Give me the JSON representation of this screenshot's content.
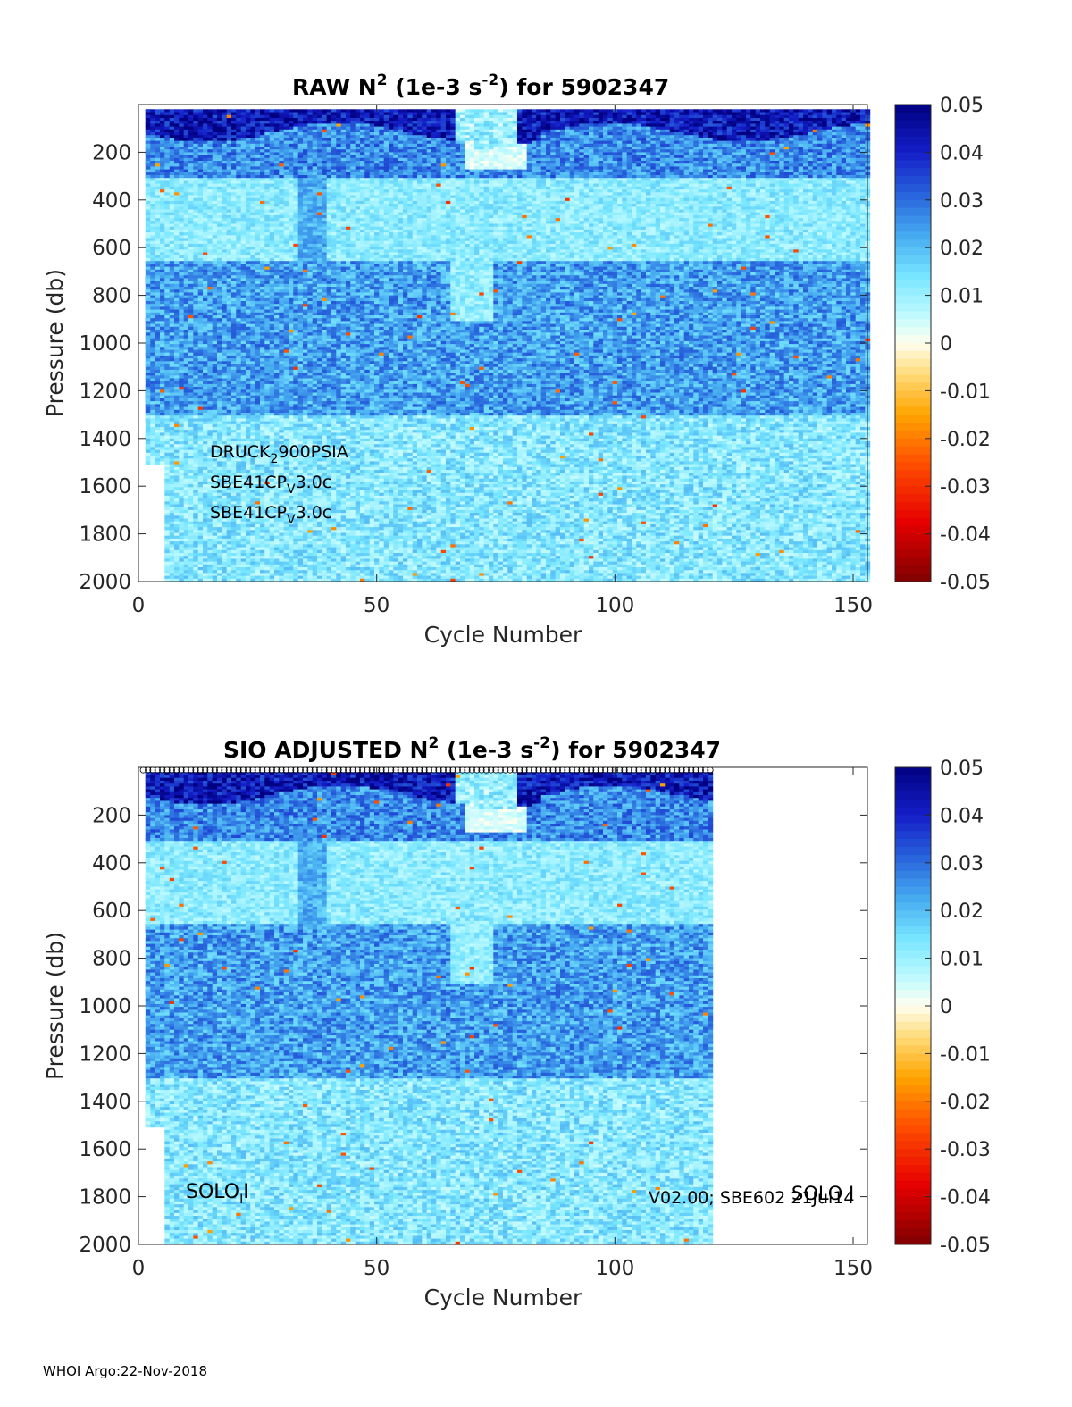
{
  "footer": "WHOI Argo:22-Nov-2018",
  "chart_data": [
    {
      "type": "heatmap",
      "title": {
        "pre": "RAW N",
        "sup1": "2",
        "mid": " (1e-3 s",
        "sup2": "-2",
        "post": ") for 5902347"
      },
      "xlabel": "Cycle Number",
      "ylabel": "Pressure (db)",
      "xlim": [
        0,
        153
      ],
      "ylim": [
        2000,
        0
      ],
      "xticks": [
        0,
        50,
        100,
        150
      ],
      "yticks": [
        200,
        400,
        600,
        800,
        1000,
        1200,
        1400,
        1600,
        1800,
        2000
      ],
      "colorbar": {
        "min": -0.05,
        "max": 0.05,
        "ticks": [
          "0.05",
          "0.04",
          "0.03",
          "0.02",
          "0.01",
          "0",
          "-0.01",
          "-0.02",
          "-0.03",
          "-0.04",
          "-0.05"
        ],
        "colormap": "jet-with-white-center"
      },
      "data_cycle_range": [
        1,
        153
      ],
      "annotations": [
        {
          "main": "DRUCK",
          "sub": "2",
          "rest": "900PSIA"
        },
        {
          "main": "SBE41CP",
          "sub": "V",
          "rest": "3.0c"
        },
        {
          "main": "SBE41CP",
          "sub": "V",
          "rest": "3.0c"
        }
      ],
      "colors": {
        "deep_blue": "#00008f",
        "cyan": "#a8f0ff",
        "white": "#ffffff",
        "dark_red": "#800000"
      }
    },
    {
      "type": "heatmap",
      "title": {
        "pre": "SIO  ADJUSTED N",
        "sup1": "2",
        "mid": " (1e-3 s",
        "sup2": "-2",
        "post": ") for 5902347"
      },
      "xlabel": "Cycle Number",
      "ylabel": "Pressure (db)",
      "xlim": [
        0,
        153
      ],
      "ylim": [
        2000,
        0
      ],
      "xticks": [
        0,
        50,
        100,
        150
      ],
      "yticks": [
        200,
        400,
        600,
        800,
        1000,
        1200,
        1400,
        1600,
        1800,
        2000
      ],
      "colorbar": {
        "min": -0.05,
        "max": 0.05,
        "ticks": [
          "0.05",
          "0.04",
          "0.03",
          "0.02",
          "0.01",
          "0",
          "-0.01",
          "-0.02",
          "-0.03",
          "-0.04",
          "-0.05"
        ],
        "colormap": "jet-with-white-center"
      },
      "data_cycle_range": [
        1,
        120
      ],
      "surface_markers": "o",
      "annotations_left": {
        "main": "SOLO",
        "sub": "I",
        "rest": "I"
      },
      "annotations_right": {
        "text": "V02.00; SBE602 21Jul14",
        "overlay": "SOLO I"
      }
    }
  ]
}
